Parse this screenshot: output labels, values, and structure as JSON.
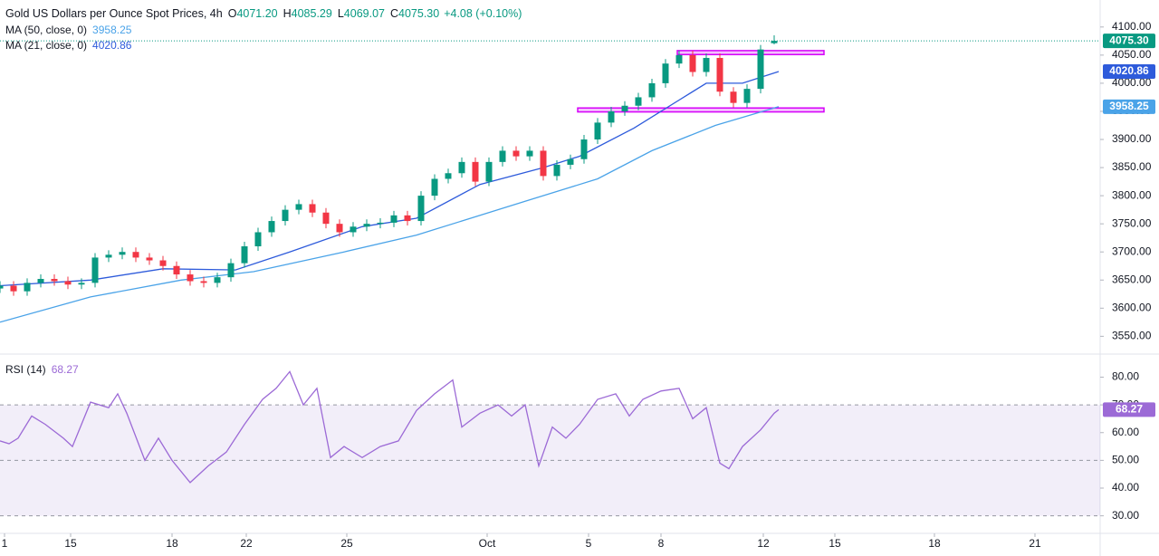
{
  "chart_data": [
    {
      "type": "candlestick",
      "title": "Gold US Dollars per Ounce Spot Prices, 4h",
      "ohlc_keys": [
        "O",
        "H",
        "L",
        "C"
      ],
      "ohlc_labels": [
        "4071.20",
        "4085.29",
        "4069.07",
        "4075.30"
      ],
      "change_label": "+4.08 (+0.10%)",
      "up_color": "#089981",
      "down_color": "#f23645",
      "xlim": [
        0,
        243
      ],
      "ylim": [
        3520,
        4148
      ],
      "yticks": [
        {
          "value": 3550,
          "label": "3550.00"
        },
        {
          "value": 3600,
          "label": "3600.00"
        },
        {
          "value": 3650,
          "label": "3650.00"
        },
        {
          "value": 3700,
          "label": "3700.00"
        },
        {
          "value": 3750,
          "label": "3750.00"
        },
        {
          "value": 3800,
          "label": "3800.00"
        },
        {
          "value": 3850,
          "label": "3850.00"
        },
        {
          "value": 3900,
          "label": "3900.00"
        },
        {
          "value": 3950,
          "label": "3950.00"
        },
        {
          "value": 4000,
          "label": "4000.00"
        },
        {
          "value": 4050,
          "label": "4050.00"
        },
        {
          "value": 4100,
          "label": "4100.00"
        }
      ],
      "candles": {
        "x": [
          0,
          3,
          6,
          9,
          12,
          15,
          18,
          21,
          24,
          27,
          30,
          33,
          36,
          39,
          42,
          45,
          48,
          51,
          54,
          57,
          60,
          63,
          66,
          69,
          72,
          75,
          78,
          81,
          84,
          87,
          90,
          93,
          96,
          99,
          102,
          105,
          108,
          111,
          114,
          117,
          120,
          123,
          126,
          129,
          132,
          135,
          138,
          141,
          144,
          147,
          150,
          153,
          156,
          159,
          162,
          165,
          168,
          171
        ],
        "open": [
          3635,
          3640,
          3630,
          3645,
          3652,
          3648,
          3642,
          3645,
          3690,
          3695,
          3700,
          3690,
          3685,
          3675,
          3660,
          3648,
          3645,
          3655,
          3680,
          3710,
          3735,
          3755,
          3775,
          3785,
          3770,
          3750,
          3735,
          3745,
          3750,
          3752,
          3765,
          3755,
          3800,
          3830,
          3840,
          3860,
          3825,
          3860,
          3880,
          3870,
          3880,
          3835,
          3855,
          3865,
          3900,
          3930,
          3950,
          3960,
          3975,
          4000,
          4035,
          4050,
          4020,
          4045,
          3985,
          3965,
          3990,
          4071.2
        ],
        "high": [
          3648,
          3648,
          3653,
          3660,
          3660,
          3656,
          3653,
          3698,
          3703,
          3708,
          3708,
          3698,
          3693,
          3683,
          3668,
          3656,
          3663,
          3688,
          3718,
          3743,
          3763,
          3783,
          3793,
          3793,
          3778,
          3758,
          3753,
          3758,
          3760,
          3773,
          3773,
          3808,
          3838,
          3848,
          3868,
          3868,
          3868,
          3888,
          3888,
          3888,
          3888,
          3863,
          3873,
          3908,
          3938,
          3958,
          3968,
          3983,
          4008,
          4043,
          4058,
          4058,
          4053,
          4053,
          3993,
          3998,
          4068,
          4085.29
        ],
        "low": [
          3627,
          3622,
          3622,
          3637,
          3640,
          3634,
          3634,
          3637,
          3682,
          3687,
          3682,
          3677,
          3667,
          3652,
          3640,
          3637,
          3637,
          3647,
          3672,
          3702,
          3727,
          3747,
          3767,
          3762,
          3742,
          3727,
          3727,
          3737,
          3742,
          3744,
          3747,
          3747,
          3792,
          3822,
          3832,
          3817,
          3817,
          3852,
          3862,
          3862,
          3827,
          3827,
          3847,
          3857,
          3892,
          3922,
          3942,
          3952,
          3967,
          3992,
          4027,
          4012,
          4012,
          3977,
          3957,
          3957,
          3982,
          4069.07
        ],
        "close": [
          3640,
          3630,
          3645,
          3652,
          3648,
          3642,
          3645,
          3690,
          3695,
          3700,
          3690,
          3685,
          3675,
          3660,
          3648,
          3645,
          3655,
          3680,
          3710,
          3735,
          3755,
          3775,
          3785,
          3770,
          3750,
          3735,
          3745,
          3750,
          3752,
          3765,
          3755,
          3800,
          3830,
          3840,
          3860,
          3825,
          3860,
          3880,
          3870,
          3880,
          3835,
          3855,
          3865,
          3900,
          3930,
          3950,
          3960,
          3975,
          4000,
          4035,
          4050,
          4020,
          4045,
          3985,
          3965,
          3990,
          4060,
          4075.3
        ]
      },
      "series": [
        {
          "name": "MA (50, close, 0)",
          "color": "#4aa3e8",
          "x": [
            0,
            20,
            40,
            56,
            76,
            92,
            116,
            132,
            144,
            158,
            172
          ],
          "values": [
            3575,
            3620,
            3650,
            3665,
            3700,
            3730,
            3790,
            3830,
            3880,
            3925,
            3958.25
          ]
        },
        {
          "name": "MA (21, close, 0)",
          "color": "#2e5bdb",
          "x": [
            0,
            20,
            36,
            52,
            64,
            80,
            92,
            106,
            120,
            128,
            140,
            150,
            156,
            164,
            172
          ],
          "values": [
            3640,
            3650,
            3670,
            3668,
            3700,
            3745,
            3760,
            3820,
            3850,
            3870,
            3920,
            3970,
            4000,
            4000,
            4020.86
          ]
        }
      ],
      "zones": [
        {
          "xlim": [
            127.6,
            182
          ],
          "ylim": [
            3949,
            3956
          ]
        },
        {
          "xlim": [
            149.6,
            182
          ],
          "ylim": [
            4051,
            4058
          ]
        }
      ],
      "zone_color": "#d500f9"
    },
    {
      "type": "line",
      "series": [
        {
          "name": "RSI (14)",
          "color": "#9c6ad6",
          "x": [
            0,
            2,
            4,
            7,
            10,
            14,
            16,
            20,
            24,
            26,
            28,
            32,
            35,
            38,
            42,
            46,
            50,
            54,
            58,
            61,
            64,
            67,
            70,
            73,
            76,
            80,
            84,
            88,
            92,
            96,
            100,
            102,
            106,
            110,
            113,
            116,
            119,
            122,
            125,
            128,
            132,
            136,
            139,
            142,
            146,
            150,
            153,
            156,
            159,
            161,
            164,
            168,
            171,
            172
          ],
          "values": [
            57,
            56,
            58,
            66,
            63,
            58,
            55,
            71,
            69,
            74,
            67,
            50,
            58,
            50,
            42,
            48,
            53,
            63,
            72,
            76,
            82,
            70,
            76,
            51,
            55,
            51,
            55,
            57,
            68,
            74,
            79,
            62,
            67,
            70,
            66,
            70,
            48,
            62,
            58,
            63,
            72,
            74,
            66,
            72,
            75,
            76,
            65,
            69,
            49,
            47,
            55,
            61,
            67,
            68.27
          ]
        }
      ],
      "band": [
        30,
        70
      ],
      "midline": 50,
      "band_color": "#7e57c2",
      "xlim": [
        0,
        243
      ],
      "ylim": [
        24,
        88
      ],
      "yticks": [
        {
          "value": 30,
          "label": "30.00"
        },
        {
          "value": 40,
          "label": "40.00"
        },
        {
          "value": 50,
          "label": "50.00"
        },
        {
          "value": 60,
          "label": "60.00"
        },
        {
          "value": 70,
          "label": "70.00"
        },
        {
          "value": 80,
          "label": "80.00"
        }
      ],
      "xticks": [
        {
          "value": 1,
          "label": "1"
        },
        {
          "value": 15.6,
          "label": "15"
        },
        {
          "value": 38,
          "label": "18"
        },
        {
          "value": 54.4,
          "label": "22"
        },
        {
          "value": 76.6,
          "label": "25"
        },
        {
          "value": 107.6,
          "label": "Oct"
        },
        {
          "value": 130,
          "label": "5"
        },
        {
          "value": 146,
          "label": "8"
        },
        {
          "value": 168.6,
          "label": "12"
        },
        {
          "value": 184.4,
          "label": "15"
        },
        {
          "value": 206.4,
          "label": "18"
        },
        {
          "value": 228.6,
          "label": "21"
        }
      ]
    }
  ]
}
